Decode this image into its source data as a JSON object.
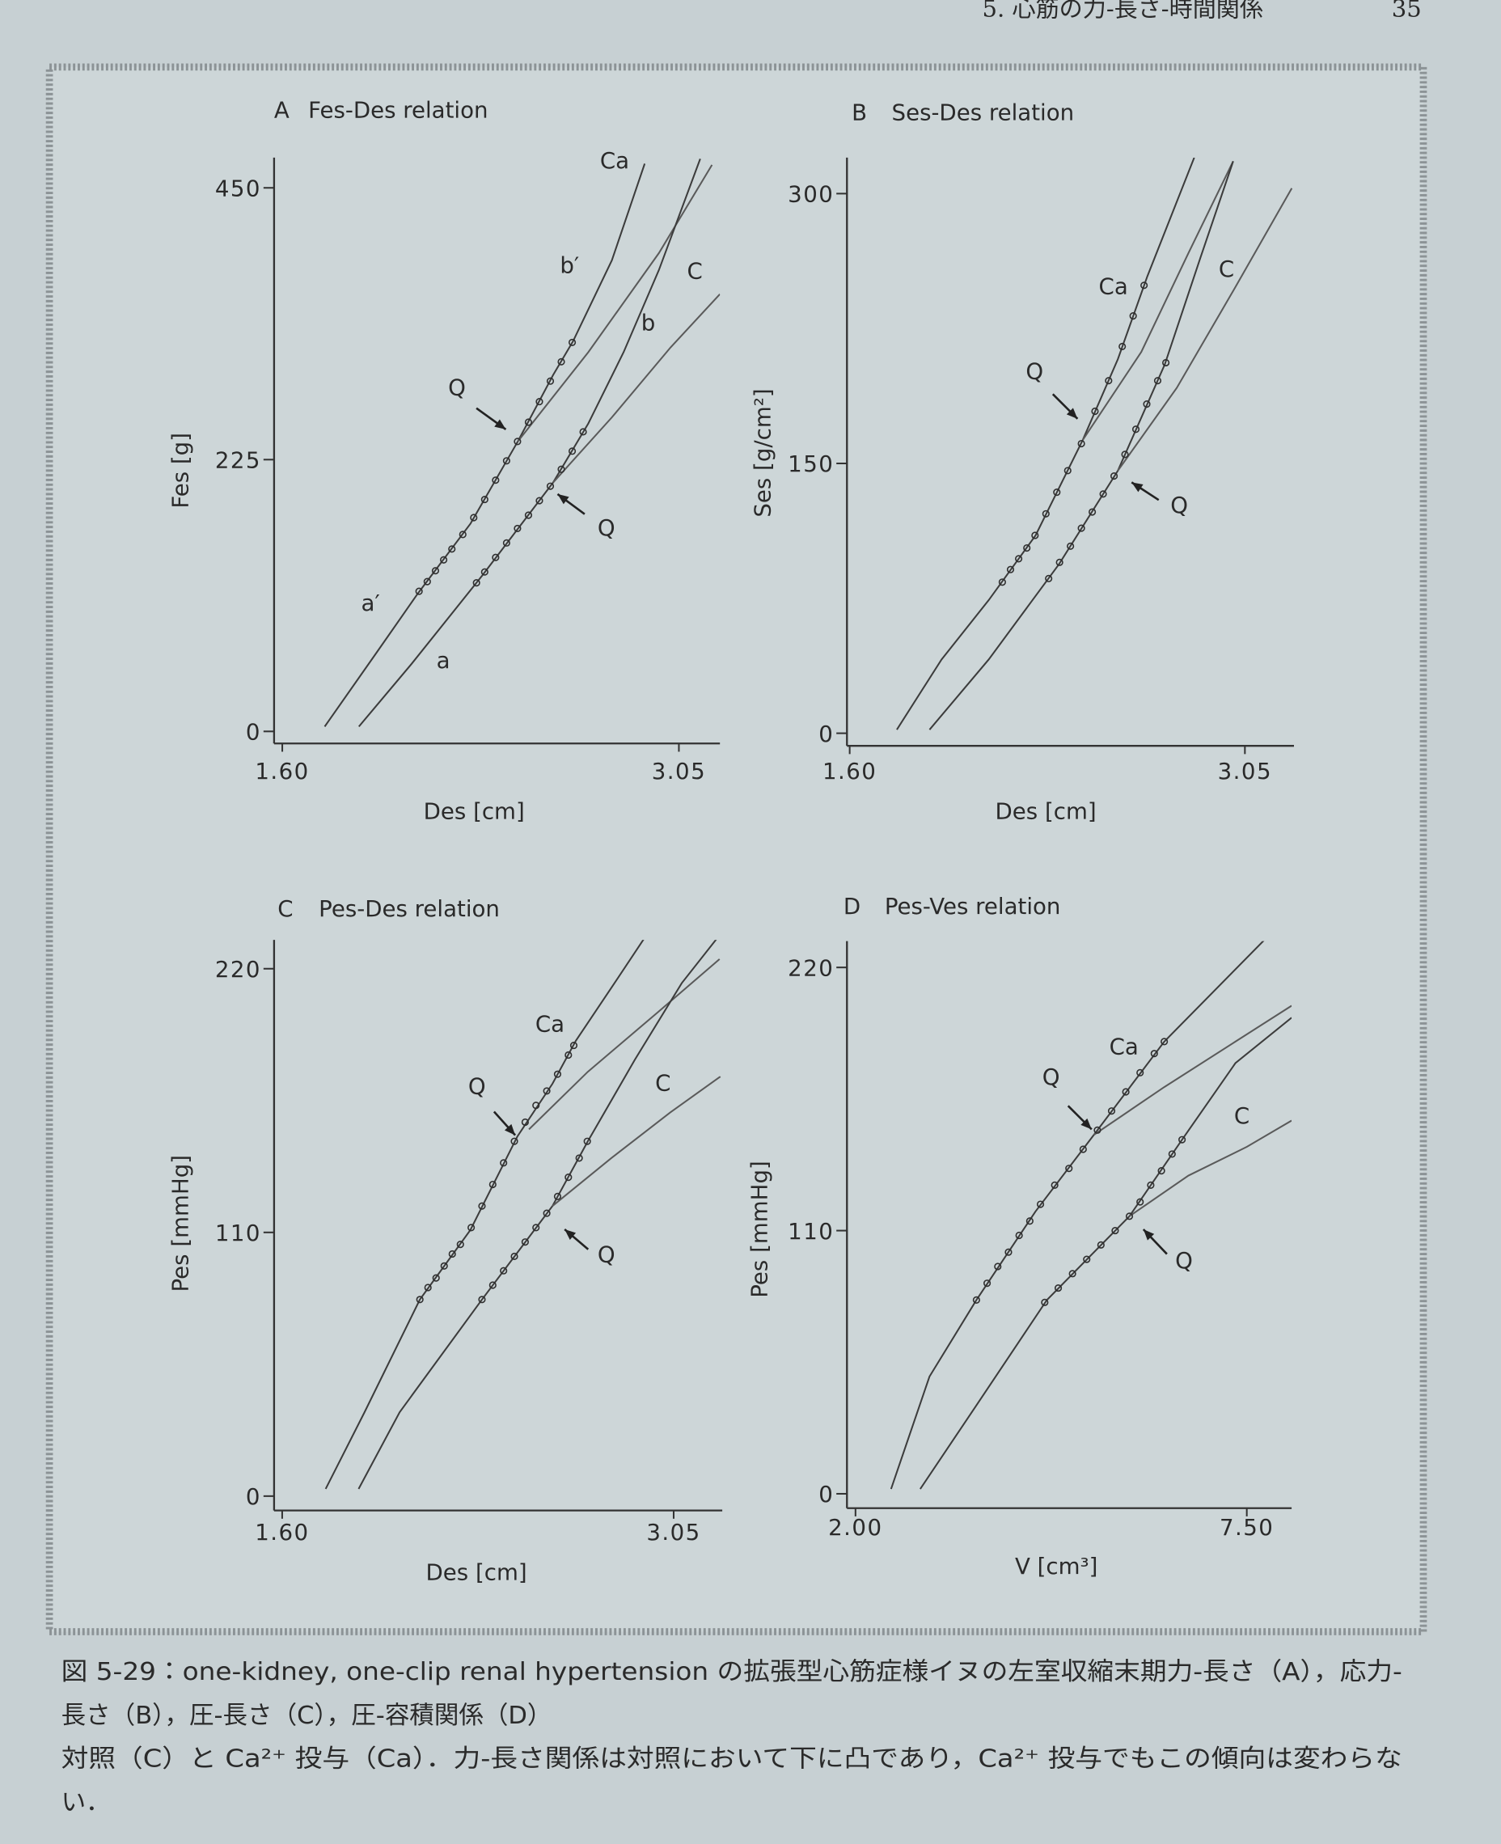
{
  "header": {
    "section": "5.  心筋の力-長さ-時間関係",
    "page": "35"
  },
  "chart_data": [
    {
      "type": "line",
      "panel": "A",
      "title": "Fes-Des relation",
      "x_label": "Des [cm]",
      "y_label": "Fes [g]",
      "xlim": [
        1.57,
        3.2
      ],
      "ylim": [
        -10,
        475
      ],
      "xticks": [
        {
          "value": 1.6,
          "label": "1.60"
        },
        {
          "value": 3.05,
          "label": "3.05"
        }
      ],
      "yticks": [
        0,
        225,
        450
      ],
      "annotations": [
        "Ca",
        "b′",
        "C",
        "b",
        "Q",
        "Q",
        "a′",
        "a"
      ],
      "series": [
        {
          "mode": "lines",
          "color": "#3c3c3c",
          "x": [
            1.755,
            1.944,
            2.095,
            2.288,
            2.461,
            2.59,
            2.663,
            2.805,
            2.925
          ],
          "values": [
            4,
            65,
            114,
            172,
            240,
            295,
            323,
            390,
            470
          ]
        },
        {
          "mode": "lines",
          "color": "#5a5a5a",
          "x": [
            2.461,
            2.719,
            2.977,
            3.171
          ],
          "values": [
            240,
            314,
            396,
            469
          ]
        },
        {
          "mode": "lines",
          "color": "#3c3c3c",
          "x": [
            1.88,
            2.073,
            2.331,
            2.59,
            2.719,
            2.848,
            2.977,
            3.128
          ],
          "values": [
            4,
            56,
            129,
            206,
            255,
            314,
            382,
            474
          ]
        },
        {
          "mode": "lines",
          "color": "#5a5a5a",
          "x": [
            2.59,
            2.805,
            3.02,
            3.2
          ],
          "values": [
            206,
            260,
            318,
            362
          ]
        },
        {
          "mode": "markers",
          "color": "#2f2f2f",
          "x": [
            2.1,
            2.13,
            2.16,
            2.19,
            2.22,
            2.26,
            2.3,
            2.34,
            2.38,
            2.42,
            2.46,
            2.5,
            2.54,
            2.58,
            2.62,
            2.66
          ],
          "values": [
            116,
            124,
            133,
            142,
            151,
            163,
            177,
            192,
            208,
            224,
            240,
            256,
            273,
            290,
            306,
            322
          ]
        },
        {
          "mode": "markers",
          "color": "#2f2f2f",
          "x": [
            2.31,
            2.34,
            2.38,
            2.42,
            2.46,
            2.5,
            2.54,
            2.58,
            2.62,
            2.66,
            2.7
          ],
          "values": [
            123,
            132,
            144,
            156,
            168,
            179,
            191,
            203,
            217,
            232,
            248
          ]
        }
      ]
    },
    {
      "type": "line",
      "panel": "B",
      "title": "Ses-Des relation",
      "x_label": "Des [cm]",
      "y_label": "Ses [g/cm²]",
      "xlim": [
        1.59,
        3.23
      ],
      "ylim": [
        -7,
        320
      ],
      "xticks": [
        {
          "value": 1.6,
          "label": "1.60"
        },
        {
          "value": 3.05,
          "label": "3.05"
        }
      ],
      "yticks": [
        0,
        150,
        300
      ],
      "annotations": [
        "Ca",
        "C",
        "Q",
        "Q"
      ],
      "series": [
        {
          "mode": "lines",
          "color": "#3c3c3c",
          "x": [
            1.773,
            1.937,
            2.11,
            2.282,
            2.455,
            2.584,
            2.692,
            2.864
          ],
          "values": [
            2,
            41,
            74,
            110,
            163,
            208,
            254,
            320
          ]
        },
        {
          "mode": "lines",
          "color": "#5a5a5a",
          "x": [
            2.455,
            2.67,
            2.843,
            3.007
          ],
          "values": [
            163,
            212,
            267,
            318
          ]
        },
        {
          "mode": "lines",
          "color": "#3c3c3c",
          "x": [
            1.893,
            2.11,
            2.368,
            2.584,
            2.756,
            2.886,
            3.007
          ],
          "values": [
            2,
            41,
            94,
            146,
            205,
            264,
            318
          ]
        },
        {
          "mode": "lines",
          "color": "#5a5a5a",
          "x": [
            2.584,
            2.8,
            3.015,
            3.222
          ],
          "values": [
            146,
            192,
            248,
            303
          ]
        },
        {
          "mode": "markers",
          "color": "#2f2f2f",
          "x": [
            2.16,
            2.19,
            2.22,
            2.25,
            2.28,
            2.32,
            2.36,
            2.4,
            2.45,
            2.5,
            2.55,
            2.6,
            2.64,
            2.68
          ],
          "values": [
            84,
            91,
            97,
            103,
            110,
            122,
            134,
            146,
            161,
            179,
            196,
            215,
            232,
            249
          ]
        },
        {
          "mode": "markers",
          "color": "#2f2f2f",
          "x": [
            2.33,
            2.37,
            2.41,
            2.45,
            2.49,
            2.53,
            2.57,
            2.61,
            2.65,
            2.69,
            2.73,
            2.76
          ],
          "values": [
            86,
            95,
            104,
            114,
            123,
            133,
            143,
            155,
            169,
            183,
            196,
            206
          ]
        }
      ]
    },
    {
      "type": "line",
      "panel": "C",
      "title": "Pes-Des relation",
      "x_label": "Des [cm]",
      "y_label": "Pes [mmHg]",
      "xlim": [
        1.57,
        3.23
      ],
      "ylim": [
        -6,
        232
      ],
      "xticks": [
        {
          "value": 1.6,
          "label": "1.60"
        },
        {
          "value": 3.05,
          "label": "3.05"
        }
      ],
      "yticks": [
        0,
        110,
        220
      ],
      "annotations": [
        "Ca",
        "C",
        "Q",
        "Q"
      ],
      "series": [
        {
          "mode": "lines",
          "color": "#3c3c3c",
          "x": [
            1.761,
            1.905,
            2.11,
            2.297,
            2.471,
            2.601,
            2.688,
            2.819,
            2.949
          ],
          "values": [
            3,
            35,
            82,
            111,
            150,
            172,
            190,
            212,
            234
          ]
        },
        {
          "mode": "lines",
          "color": "#5a5a5a",
          "x": [
            2.514,
            2.732,
            2.993,
            3.22
          ],
          "values": [
            153,
            177,
            202,
            224
          ]
        },
        {
          "mode": "lines",
          "color": "#3c3c3c",
          "x": [
            1.883,
            2.035,
            2.34,
            2.601,
            2.732,
            2.906,
            3.08,
            3.22
          ],
          "values": [
            3,
            35,
            82,
            121,
            148,
            182,
            214,
            234
          ]
        },
        {
          "mode": "lines",
          "color": "#5a5a5a",
          "x": [
            2.601,
            2.819,
            3.037,
            3.223
          ],
          "values": [
            121,
            141,
            160,
            175
          ]
        },
        {
          "mode": "markers",
          "color": "#2f2f2f",
          "x": [
            2.11,
            2.14,
            2.17,
            2.2,
            2.23,
            2.26,
            2.3,
            2.34,
            2.38,
            2.42,
            2.46,
            2.5,
            2.54,
            2.58,
            2.62,
            2.66,
            2.68
          ],
          "values": [
            82,
            87,
            91,
            96,
            101,
            105,
            112,
            121,
            130,
            139,
            148,
            156,
            163,
            169,
            176,
            184,
            188
          ]
        },
        {
          "mode": "markers",
          "color": "#2f2f2f",
          "x": [
            2.34,
            2.38,
            2.42,
            2.46,
            2.5,
            2.54,
            2.58,
            2.62,
            2.66,
            2.7,
            2.73
          ],
          "values": [
            82,
            88,
            94,
            100,
            106,
            112,
            118,
            125,
            133,
            141,
            148
          ]
        }
      ]
    },
    {
      "type": "line",
      "panel": "D",
      "title": "Pes-Ves relation",
      "x_label": "V [cm³]",
      "y_label": "Pes [mmHg]",
      "xlim": [
        1.88,
        8.13
      ],
      "ylim": [
        -6,
        231
      ],
      "xticks": [
        {
          "value": 2,
          "label": "2.00"
        },
        {
          "value": 7.5,
          "label": "7.50"
        }
      ],
      "yticks": [
        0,
        110,
        220
      ],
      "annotations": [
        "Ca",
        "C",
        "Q",
        "Q"
      ],
      "series": [
        {
          "mode": "lines",
          "color": "#3c3c3c",
          "x": [
            2.5,
            3.04,
            3.7,
            4.53,
            5.35,
            6.34,
            7.83
          ],
          "values": [
            2,
            49,
            81,
            118,
            150,
            189,
            234
          ]
        },
        {
          "mode": "lines",
          "color": "#5a5a5a",
          "x": [
            5.35,
            6.34,
            7.34,
            8.13
          ],
          "values": [
            150,
            170,
            189,
            204
          ]
        },
        {
          "mode": "lines",
          "color": "#3c3c3c",
          "x": [
            2.91,
            3.7,
            4.69,
            5.85,
            6.59,
            7.34,
            8.13
          ],
          "values": [
            2,
            37,
            81,
            116,
            148,
            180,
            199
          ]
        },
        {
          "mode": "lines",
          "color": "#5a5a5a",
          "x": [
            5.85,
            6.68,
            7.5,
            8.13
          ],
          "values": [
            116,
            133,
            145,
            156
          ]
        },
        {
          "mode": "markers",
          "color": "#2f2f2f",
          "x": [
            3.7,
            3.85,
            4.0,
            4.15,
            4.3,
            4.45,
            4.6,
            4.8,
            5.0,
            5.2,
            5.4,
            5.6,
            5.8,
            6.0,
            6.2,
            6.34
          ],
          "values": [
            81,
            88,
            95,
            101,
            108,
            114,
            121,
            129,
            136,
            144,
            152,
            160,
            168,
            176,
            184,
            189
          ]
        },
        {
          "mode": "markers",
          "color": "#2f2f2f",
          "x": [
            4.66,
            4.85,
            5.05,
            5.25,
            5.45,
            5.65,
            5.85,
            6.0,
            6.15,
            6.3,
            6.45,
            6.59
          ],
          "values": [
            80,
            86,
            92,
            98,
            104,
            110,
            116,
            122,
            129,
            135,
            142,
            148
          ]
        }
      ]
    }
  ],
  "caption": {
    "lines": [
      "図 5-29：one-kidney, one-clip renal hypertension の拡張型心筋症様イヌの左室収縮末期力-長さ（A），応力-",
      "長さ（B），圧-長さ（C），圧-容積関係（D）",
      "対照（C）と Ca²⁺ 投与（Ca）．力-長さ関係は対照において下に凸であり，Ca²⁺ 投与でもこの傾向は変わらな",
      "い．"
    ]
  }
}
